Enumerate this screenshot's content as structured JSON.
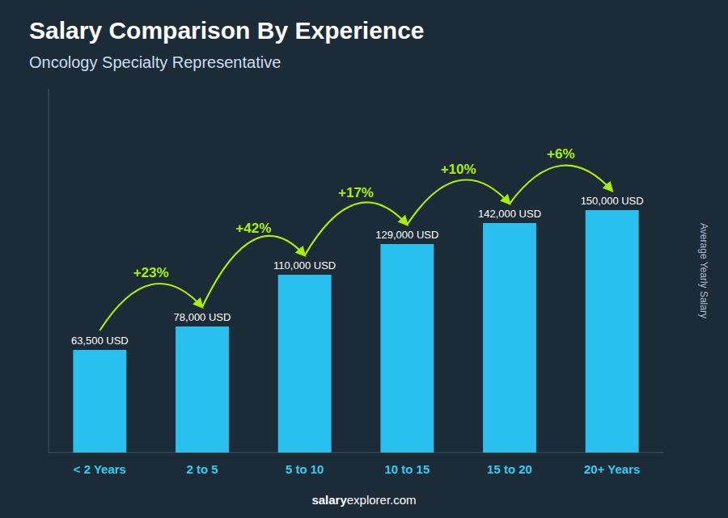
{
  "chart_data": {
    "type": "bar",
    "title": "Salary Comparison By Experience",
    "subtitle": "Oncology Specialty Representative",
    "y_label": "Average Yearly Salary",
    "footer": [
      "salary",
      "explorer.com"
    ],
    "categories": [
      "< 2 Years",
      "2 to 5",
      "5 to 10",
      "10 to 15",
      "15 to 20",
      "20+ Years"
    ],
    "values": [
      63500,
      78000,
      110000,
      129000,
      142000,
      150000
    ],
    "value_labels": [
      "63,500 USD",
      "78,000 USD",
      "110,000 USD",
      "129,000 USD",
      "142,000 USD",
      "150,000 USD"
    ],
    "annotations": [
      "+23%",
      "+42%",
      "+17%",
      "+10%",
      "+6%"
    ],
    "color": "#29BFEF",
    "ylim": [
      0,
      225000
    ],
    "data_labels": true,
    "tick_labels": "x",
    "grid": false
  }
}
